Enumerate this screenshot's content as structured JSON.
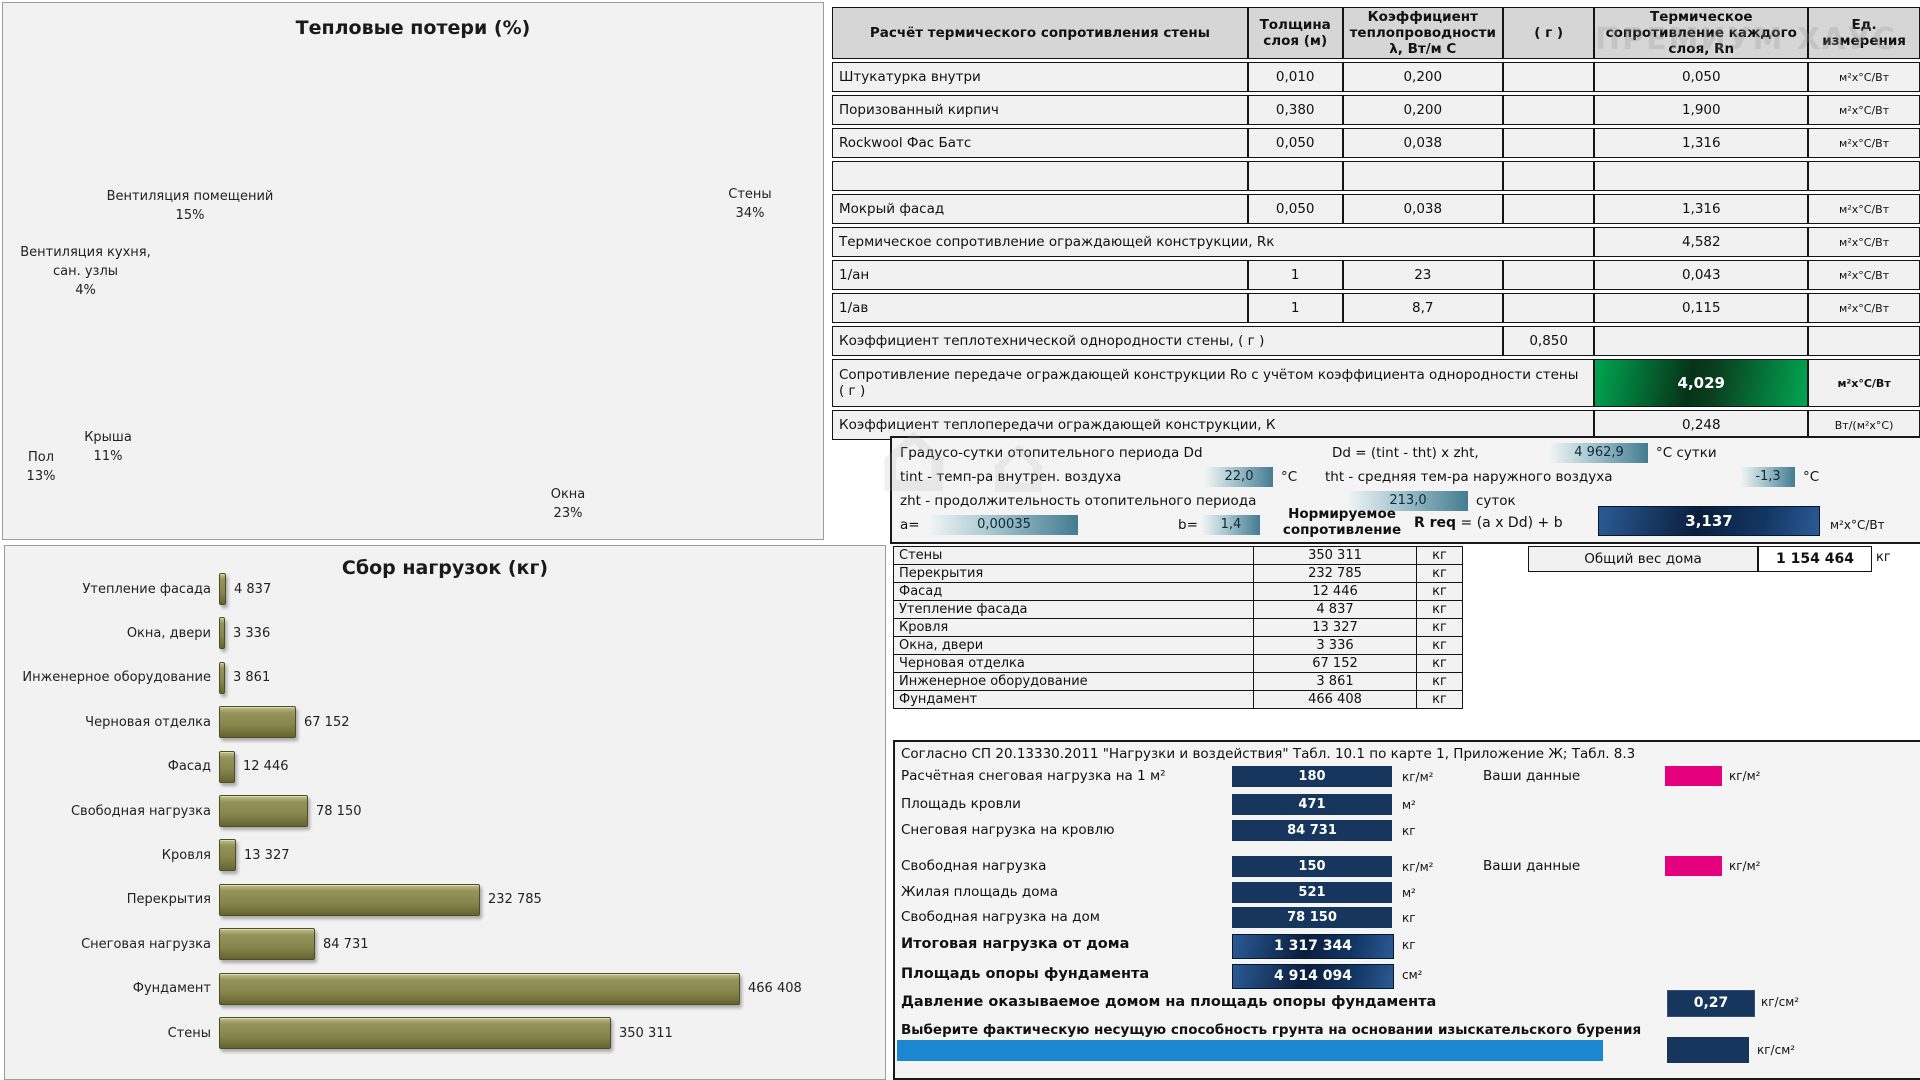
{
  "watermark": "ПРЕМИУМ ХАУС",
  "chart_data": [
    {
      "type": "pie",
      "effect": "3d",
      "title": "Тепловые потери (%)",
      "labels": [
        "Стены",
        "Окна",
        "Крыша",
        "Пол",
        "Вентиляция кухня,\nсан. узлы",
        "Вентиляция помещений"
      ],
      "values": [
        34,
        23,
        11,
        13,
        4,
        15
      ],
      "percent_labels": [
        "34%",
        "23%",
        "11%",
        "13%",
        "4%",
        "15%"
      ],
      "colors": [
        "#4F81BD",
        "#C0504D",
        "#9BBB59",
        "#8064A2",
        "#4BACC6",
        "#F79646"
      ],
      "legend_position": "outside-labels"
    },
    {
      "type": "bar",
      "orientation": "horizontal",
      "title": "Сбор нагрузок (кг)",
      "categories": [
        "Утепление фасада",
        "Окна, двери",
        "Инженерное оборудование",
        "Черновая отделка",
        "Фасад",
        "Свободная нагрузка",
        "Кровля",
        "Перекрытия",
        "Снеговая нагрузка",
        "Фундамент",
        "Стены"
      ],
      "values": [
        4837,
        3336,
        3861,
        67152,
        12446,
        78150,
        13327,
        232785,
        84731,
        466408,
        350311
      ],
      "value_labels": [
        "4 837",
        "3 336",
        "3 861",
        "67 152",
        "12 446",
        "78 150",
        "13 327",
        "232 785",
        "84 731",
        "466 408",
        "350 311"
      ],
      "bar_color": "#8F8F4E",
      "xlim": [
        0,
        466408
      ],
      "grid": false
    }
  ],
  "resistance_table": {
    "headers": [
      "Расчёт термического сопротивления стены",
      "Толщина слоя (м)",
      "Коэффициент теплопроводности λ, Вт/м С",
      "( г )",
      "Термическое сопротивление каждого слоя, Rn",
      "Ед. измерения"
    ],
    "rows": [
      {
        "name": "Штукатурка внутри",
        "t": "0,010",
        "l": "0,200",
        "r": "",
        "rn": "0,050",
        "u": "м²х°С/Вт"
      },
      {
        "name": "Поризованный кирпич",
        "t": "0,380",
        "l": "0,200",
        "r": "",
        "rn": "1,900",
        "u": "м²х°С/Вт"
      },
      {
        "name": "Rockwool Фас Батс",
        "t": "0,050",
        "l": "0,038",
        "r": "",
        "rn": "1,316",
        "u": "м²х°С/Вт"
      },
      {
        "name": "",
        "t": "",
        "l": "",
        "r": "",
        "rn": "",
        "u": ""
      },
      {
        "name": "Мокрый фасад",
        "t": "0,050",
        "l": "0,038",
        "r": "",
        "rn": "1,316",
        "u": "м²х°С/Вт"
      },
      {
        "name": "Термическое сопротивление ограждающей конструкции, Rк",
        "span": 4,
        "rn": "4,582",
        "u": "м²х°С/Вт"
      },
      {
        "name": "1/ан",
        "t": "1",
        "l": "23",
        "r": "",
        "rn": "0,043",
        "u": "м²х°С/Вт"
      },
      {
        "name": "1/ав",
        "t": "1",
        "l": "8,7",
        "r": "",
        "rn": "0,115",
        "u": "м²х°С/Вт"
      },
      {
        "name": "Коэффициент теплотехнической однородности стены, ( г )",
        "span": 3,
        "r": "0,850",
        "rn": "",
        "u": ""
      },
      {
        "name": "Сопротивление передаче ограждающей конструкции Ro с учётом коэффициента однородности стены ( г )",
        "span": 4,
        "rn": "4,029",
        "u": "м²х°С/Вт",
        "style": "green",
        "tall": true
      },
      {
        "name": "Коэффициент теплопередачи ограждающей конструкции, К",
        "span": 4,
        "rn": "0,248",
        "u": "Вт/(м²х°С)"
      }
    ]
  },
  "dd_section": {
    "title_label": "Градусо-сутки отопительного периода Dd",
    "formula": "Dd = (tint - tht) x zht,",
    "dd_value": "4 962,9",
    "dd_unit": "°С сутки",
    "tint_label": "tint - темп-ра внутрен. воздуха",
    "tint_value": "22,0",
    "tint_unit": "°С",
    "tht_label": "tht - средняя тем-ра наружного воздуха",
    "tht_value": "-1,3",
    "tht_unit": "°С",
    "zht_label": "zht - продолжительность отопительного периода",
    "zht_value": "213,0",
    "zht_unit": "суток",
    "a_label": "a=",
    "a_value": "0,00035",
    "b_label": "b=",
    "b_value": "1,4",
    "norm_label": "Нормируемое сопротивление",
    "rreq_bold": "R req",
    "rreq_rest": " = (a x Dd) + b",
    "rreq_value": "3,137",
    "rreq_unit": "м²х°С/Вт"
  },
  "weights_table": {
    "rows": [
      [
        "Стены",
        "350 311",
        "кг"
      ],
      [
        "Перекрытия",
        "232 785",
        "кг"
      ],
      [
        "Фасад",
        "12 446",
        "кг"
      ],
      [
        "Утепление фасада",
        "4 837",
        "кг"
      ],
      [
        "Кровля",
        "13 327",
        "кг"
      ],
      [
        "Окна, двери",
        "3 336",
        "кг"
      ],
      [
        "Черновая отделка",
        "67 152",
        "кг"
      ],
      [
        "Инженерное оборудование",
        "3 861",
        "кг"
      ],
      [
        "Фундамент",
        "466 408",
        "кг"
      ]
    ],
    "total_label": "Общий вес дома",
    "total_value": "1 154 464",
    "total_unit": "кг"
  },
  "loads_section": {
    "note": "Согласно СП 20.13330.2011 \"Нагрузки и воздействия\"  Табл. 10.1 по карте 1, Приложение Ж; Табл. 8.3",
    "rows": [
      {
        "label": "Расчётная снеговая нагрузка на 1 м²",
        "value": "180",
        "unit": "кг/м²",
        "your_label": "Ваши данные",
        "your_unit": "кг/м²"
      },
      {
        "label": "Площадь кровли",
        "value": "471",
        "unit": "м²"
      },
      {
        "label": "Снеговая нагрузка на кровлю",
        "value": "84 731",
        "unit": "кг"
      },
      {
        "label": "Свободная нагрузка",
        "value": "150",
        "unit": "кг/м²",
        "your_label": "Ваши данные",
        "your_unit": "кг/м²"
      },
      {
        "label": "Жилая площадь дома",
        "value": "521",
        "unit": "м²"
      },
      {
        "label": "Свободная нагрузка на дом",
        "value": "78 150",
        "unit": "кг"
      },
      {
        "label": "Итоговая нагрузка от дома",
        "value": "1 317 344",
        "unit": "кг",
        "bold": true,
        "grad": true
      },
      {
        "label": "Площадь опоры фундамента",
        "value": "4 914 094",
        "unit": "см²",
        "bold": true,
        "grad": true
      }
    ],
    "pressure_label": "Давление оказываемое домом на площадь опоры фундамента",
    "pressure_value": "0,27",
    "pressure_unit": "кг/см²",
    "soil_label": "Выберите фактическую несущую способность грунта на основании изыскательского бурения",
    "soil_unit": "кг/см²"
  },
  "colors": {
    "navy": "#16365d",
    "green": "#00a651",
    "magenta": "#e5007d",
    "blue_bar": "#1b87d1",
    "teal": "#447c91"
  }
}
